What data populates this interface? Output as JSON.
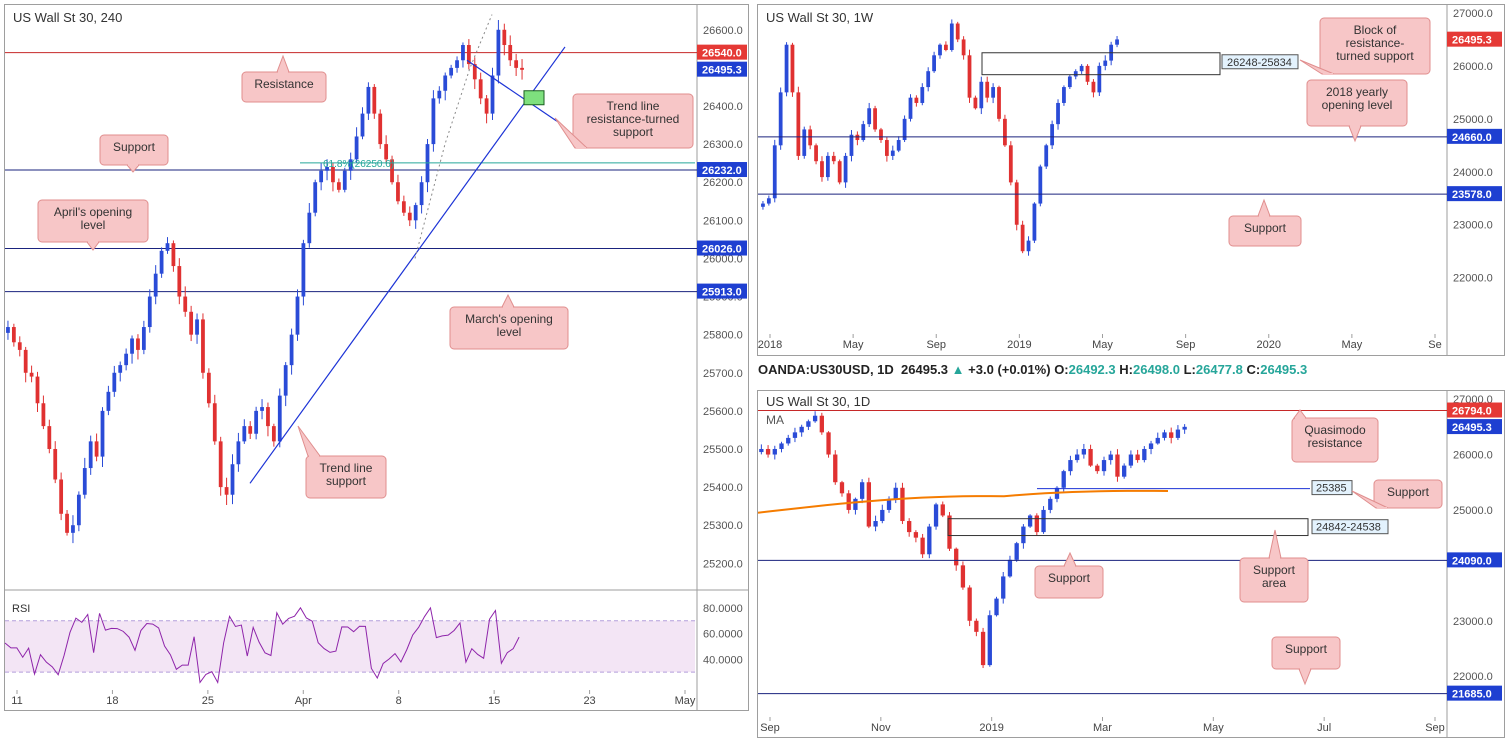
{
  "colors": {
    "up": "#2a4bd7",
    "down": "#e03131",
    "resistance_line": "#c62828",
    "support_line": "#1a237e",
    "trend_line": "#1c33d6",
    "fib_line": "#26a69a",
    "rsi_line": "#8e24aa",
    "rsi_band": "#f3e5f5",
    "ma_line": "#f57c00",
    "callout_fill": "#f7c6c7",
    "callout_border": "#e08e8e",
    "callout_text": "#333333",
    "blue_tag": "#1e3fd1",
    "red_tag": "#e53935"
  },
  "quote": {
    "symbol": "OANDA:US30USD, 1D",
    "last": "26495.3",
    "change": "+3.0 (+0.01%)",
    "o_label": "O:",
    "o": "26492.3",
    "h_label": "H:",
    "h": "26498.0",
    "l_label": "L:",
    "l": "26477.8",
    "c_label": "C:",
    "c": "26495.3"
  },
  "chart_data": [
    {
      "type": "candlestick",
      "title": "US Wall St 30, 240",
      "ylim": [
        25130,
        26665
      ],
      "y_ticks": [
        "26600.0",
        "26500.0",
        "26400.0",
        "26300.0",
        "26200.0",
        "26100.0",
        "26000.0",
        "25900.0",
        "25800.0",
        "25700.0",
        "25600.0",
        "25500.0",
        "25400.0",
        "25300.0",
        "25200.0"
      ],
      "x_ticks": [
        "11",
        "18",
        "25",
        "Apr",
        "8",
        "15",
        "23",
        "May"
      ],
      "price_tags": [
        {
          "value": 26540.0,
          "label": "26540.0",
          "color": "red"
        },
        {
          "value": 26495.3,
          "label": "26495.3",
          "color": "blue"
        },
        {
          "value": 26232.0,
          "label": "26232.0",
          "color": "blue"
        },
        {
          "value": 26026.0,
          "label": "26026.0",
          "color": "blue"
        },
        {
          "value": 25913.0,
          "label": "25913.0",
          "color": "blue"
        }
      ],
      "levels": [
        {
          "value": 26540,
          "kind": "resistance"
        },
        {
          "value": 26232,
          "kind": "support"
        },
        {
          "value": 26026,
          "kind": "support"
        },
        {
          "value": 25913,
          "kind": "support"
        }
      ],
      "fib": {
        "value": 26250.6,
        "label": "61.8%(26250.6)"
      },
      "annotations": [
        "Resistance",
        "Support",
        "April's opening level",
        "March's opening level",
        "Trend line support",
        "Trend line resistance-turned support"
      ],
      "rsi": {
        "label": "RSI",
        "ticks": [
          "80.0000",
          "60.0000",
          "40.0000"
        ],
        "upper": 70,
        "lower": 30
      },
      "series_close": [
        25820,
        25780,
        25760,
        25700,
        25690,
        25620,
        25560,
        25500,
        25420,
        25330,
        25280,
        25300,
        25380,
        25450,
        25520,
        25480,
        25600,
        25650,
        25700,
        25720,
        25750,
        25790,
        25760,
        25820,
        25900,
        25960,
        26020,
        26040,
        25980,
        25900,
        25860,
        25800,
        25840,
        25700,
        25620,
        25520,
        25400,
        25380,
        25460,
        25520,
        25560,
        25540,
        25600,
        25610,
        25560,
        25520,
        25640,
        25720,
        25800,
        25900,
        26040,
        26120,
        26200,
        26230,
        26240,
        26200,
        26180,
        26230,
        26260,
        26320,
        26380,
        26450,
        26380,
        26300,
        26260,
        26200,
        26150,
        26120,
        26100,
        26140,
        26200,
        26300,
        26420,
        26440,
        26480,
        26500,
        26520,
        26560,
        26510,
        26470,
        26420,
        26380,
        26480,
        26600,
        26560,
        26520,
        26500,
        26495
      ]
    },
    {
      "type": "candlestick",
      "title": "US Wall St 30, 1W",
      "ylim": [
        21050,
        27150
      ],
      "y_ticks": [
        "27000.0",
        "26000.0",
        "25000.0",
        "24000.0",
        "23000.0",
        "22000.0"
      ],
      "x_ticks": [
        "2018",
        "May",
        "Sep",
        "2019",
        "May",
        "Sep",
        "2020",
        "May",
        "Se"
      ],
      "price_tags": [
        {
          "value": 26495.3,
          "label": "26495.3",
          "color": "red"
        },
        {
          "value": 24660.0,
          "label": "24660.0",
          "color": "blue"
        },
        {
          "value": 23578.0,
          "label": "23578.0",
          "color": "blue"
        }
      ],
      "zone": {
        "label": "26248-25834",
        "top": 26248,
        "bottom": 25834
      },
      "annotations": [
        "Block of resistance-turned support",
        "2018 yearly opening level",
        "Support"
      ],
      "series_close": [
        23400,
        23500,
        24500,
        25500,
        26400,
        25500,
        24300,
        24800,
        24500,
        24200,
        23900,
        24300,
        24200,
        23800,
        24300,
        24700,
        24600,
        24900,
        25200,
        24800,
        24600,
        24300,
        24400,
        24600,
        25000,
        25400,
        25300,
        25600,
        25900,
        26200,
        26400,
        26300,
        26800,
        26500,
        26200,
        25400,
        25200,
        25700,
        25400,
        25600,
        25000,
        24500,
        23800,
        23000,
        22500,
        22700,
        23400,
        24100,
        24500,
        24900,
        25300,
        25600,
        25800,
        25900,
        26000,
        25700,
        25500,
        26000,
        26100,
        26400,
        26500
      ]
    },
    {
      "type": "candlestick",
      "title": "US Wall St 30, 1D",
      "indicator": "MA",
      "ylim": [
        21480,
        27020
      ],
      "y_ticks": [
        "27000.0",
        "26000.0",
        "25000.0",
        "23000.0",
        "22000.0"
      ],
      "x_ticks": [
        "Sep",
        "Nov",
        "2019",
        "Mar",
        "May",
        "Jul",
        "Sep"
      ],
      "price_tags": [
        {
          "value": 26794.0,
          "label": "26794.0",
          "color": "red"
        },
        {
          "value": 26495.3,
          "label": "26495.3",
          "color": "blue"
        },
        {
          "value": 24090.0,
          "label": "24090.0",
          "color": "blue"
        },
        {
          "value": 21685.0,
          "label": "21685.0",
          "color": "blue"
        }
      ],
      "boxes": [
        {
          "label": "25385",
          "value": 25385
        },
        {
          "label": "24842-24538",
          "top": 24842,
          "bottom": 24538
        }
      ],
      "annotations": [
        "Quasimodo resistance",
        "Support",
        "Support",
        "Support area",
        "Support"
      ],
      "series_close": [
        26100,
        26000,
        26100,
        26200,
        26300,
        26400,
        26500,
        26600,
        26700,
        26400,
        26000,
        25500,
        25300,
        25000,
        25200,
        25500,
        24700,
        24800,
        25000,
        25200,
        25400,
        24800,
        24600,
        24500,
        24200,
        24700,
        25100,
        24900,
        24300,
        24000,
        23600,
        23000,
        22800,
        22200,
        23100,
        23400,
        23800,
        24100,
        24400,
        24700,
        24900,
        24600,
        25000,
        25200,
        25400,
        25700,
        25900,
        26000,
        26100,
        25800,
        25700,
        25900,
        26000,
        25600,
        25800,
        26000,
        25900,
        26100,
        26200,
        26300,
        26400,
        26300,
        26450,
        26500
      ]
    }
  ]
}
